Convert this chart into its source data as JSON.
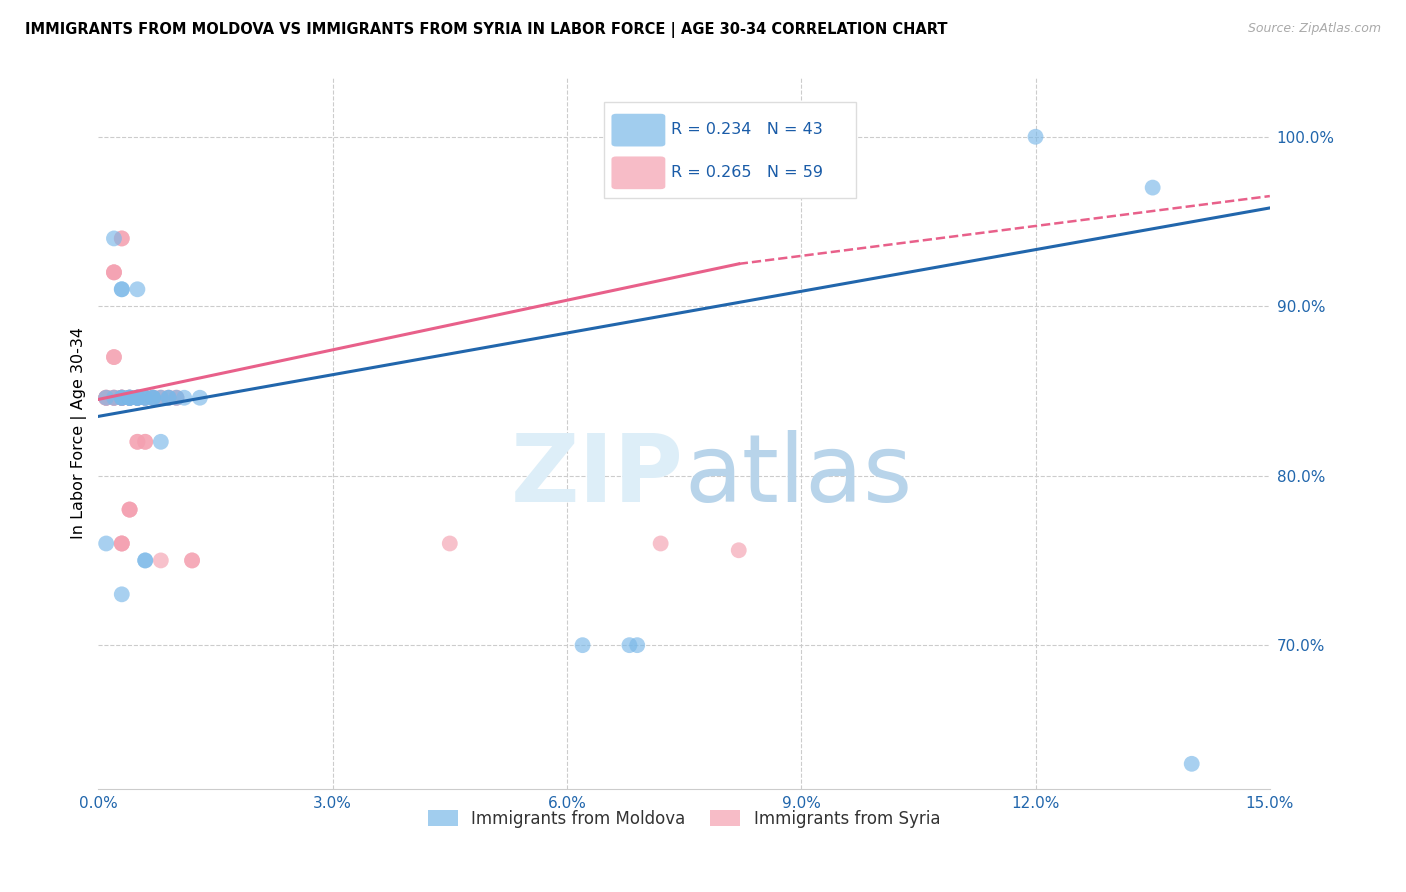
{
  "title": "IMMIGRANTS FROM MOLDOVA VS IMMIGRANTS FROM SYRIA IN LABOR FORCE | AGE 30-34 CORRELATION CHART",
  "source": "Source: ZipAtlas.com",
  "ylabel": "In Labor Force | Age 30-34",
  "xlim": [
    0.0,
    0.15
  ],
  "ylim": [
    0.615,
    1.035
  ],
  "xticks": [
    0.0,
    0.03,
    0.06,
    0.09,
    0.12,
    0.15
  ],
  "xticklabels": [
    "0.0%",
    "3.0%",
    "6.0%",
    "9.0%",
    "12.0%",
    "15.0%"
  ],
  "yticks_right": [
    0.7,
    0.8,
    0.9,
    1.0
  ],
  "yticklabels_right": [
    "70.0%",
    "80.0%",
    "90.0%",
    "100.0%"
  ],
  "moldova_color": "#7ab8e8",
  "syria_color": "#f4a0b0",
  "moldova_R": 0.234,
  "moldova_N": 43,
  "syria_R": 0.265,
  "syria_N": 59,
  "moldova_line_color": "#2166ac",
  "syria_line_color": "#e8608a",
  "moldova_line": [
    0.0,
    0.835,
    0.15,
    0.958
  ],
  "syria_line_solid": [
    0.0,
    0.845,
    0.082,
    0.925
  ],
  "syria_line_dashed": [
    0.082,
    0.925,
    0.15,
    0.965
  ],
  "moldova_x": [
    0.001,
    0.001,
    0.002,
    0.002,
    0.003,
    0.003,
    0.003,
    0.003,
    0.003,
    0.003,
    0.004,
    0.004,
    0.004,
    0.004,
    0.004,
    0.004,
    0.005,
    0.005,
    0.005,
    0.005,
    0.005,
    0.005,
    0.006,
    0.006,
    0.006,
    0.006,
    0.006,
    0.007,
    0.007,
    0.007,
    0.008,
    0.008,
    0.009,
    0.009,
    0.01,
    0.011,
    0.013,
    0.062,
    0.068,
    0.069,
    0.12,
    0.135,
    0.14
  ],
  "moldova_y": [
    0.846,
    0.76,
    0.846,
    0.94,
    0.846,
    0.846,
    0.846,
    0.91,
    0.91,
    0.73,
    0.846,
    0.846,
    0.846,
    0.846,
    0.846,
    0.846,
    0.846,
    0.846,
    0.846,
    0.91,
    0.846,
    0.846,
    0.846,
    0.846,
    0.846,
    0.75,
    0.75,
    0.846,
    0.846,
    0.846,
    0.846,
    0.82,
    0.846,
    0.846,
    0.846,
    0.846,
    0.846,
    0.7,
    0.7,
    0.7,
    1.0,
    0.97,
    0.63
  ],
  "syria_x": [
    0.001,
    0.001,
    0.001,
    0.001,
    0.002,
    0.002,
    0.002,
    0.002,
    0.002,
    0.002,
    0.002,
    0.002,
    0.002,
    0.003,
    0.003,
    0.003,
    0.003,
    0.003,
    0.003,
    0.003,
    0.003,
    0.003,
    0.003,
    0.003,
    0.003,
    0.003,
    0.003,
    0.004,
    0.004,
    0.004,
    0.004,
    0.004,
    0.004,
    0.004,
    0.005,
    0.005,
    0.005,
    0.005,
    0.005,
    0.005,
    0.006,
    0.006,
    0.006,
    0.006,
    0.007,
    0.007,
    0.007,
    0.008,
    0.008,
    0.008,
    0.009,
    0.009,
    0.01,
    0.01,
    0.012,
    0.012,
    0.045,
    0.072,
    0.082
  ],
  "syria_y": [
    0.846,
    0.846,
    0.846,
    0.846,
    0.92,
    0.92,
    0.92,
    0.846,
    0.846,
    0.846,
    0.846,
    0.87,
    0.87,
    0.846,
    0.846,
    0.846,
    0.846,
    0.846,
    0.846,
    0.846,
    0.846,
    0.846,
    0.76,
    0.76,
    0.76,
    0.94,
    0.94,
    0.846,
    0.846,
    0.846,
    0.846,
    0.78,
    0.78,
    0.78,
    0.846,
    0.846,
    0.82,
    0.82,
    0.846,
    0.846,
    0.846,
    0.846,
    0.82,
    0.82,
    0.846,
    0.846,
    0.846,
    0.846,
    0.75,
    0.846,
    0.846,
    0.846,
    0.846,
    0.846,
    0.75,
    0.75,
    0.76,
    0.76,
    0.756
  ]
}
